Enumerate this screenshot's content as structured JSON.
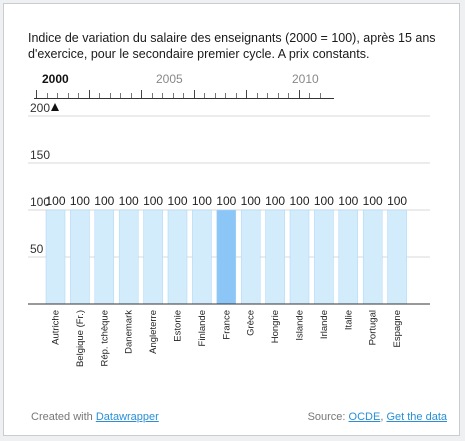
{
  "title": "Indice de variation du salaire des enseignants (2000 = 100), après 15 ans d'exercice, pour le secondaire premier cycle. A prix constants.",
  "timeline": {
    "labels": [
      "2000",
      "2005",
      "2010"
    ],
    "selected": "2000"
  },
  "chart_data": {
    "type": "bar",
    "categories": [
      "Autriche",
      "Belgique (Fr.)",
      "Rép. tchèque",
      "Danemark",
      "Angleterre",
      "Estonie",
      "Finlande",
      "France",
      "Grèce",
      "Hongrie",
      "Islande",
      "Irlande",
      "Italie",
      "Portugal",
      "Espagne"
    ],
    "values": [
      100,
      100,
      100,
      100,
      100,
      100,
      100,
      100,
      100,
      100,
      100,
      100,
      100,
      100,
      100
    ],
    "highlight": "France",
    "ylim": [
      0,
      200
    ],
    "yticks": [
      50,
      100,
      150,
      200
    ],
    "grid": true,
    "colors": {
      "bar": "#d3ecfc",
      "bar_highlight": "#8cc6f7",
      "bar_edge": "#a9d5f5",
      "grid": "#d8d8d8",
      "axis": "#333333"
    }
  },
  "footer": {
    "created_with": "Created with",
    "created_link": "Datawrapper",
    "source_label": "Source:",
    "source_link": "OCDE",
    "separator": ",",
    "get_data": "Get the data"
  }
}
